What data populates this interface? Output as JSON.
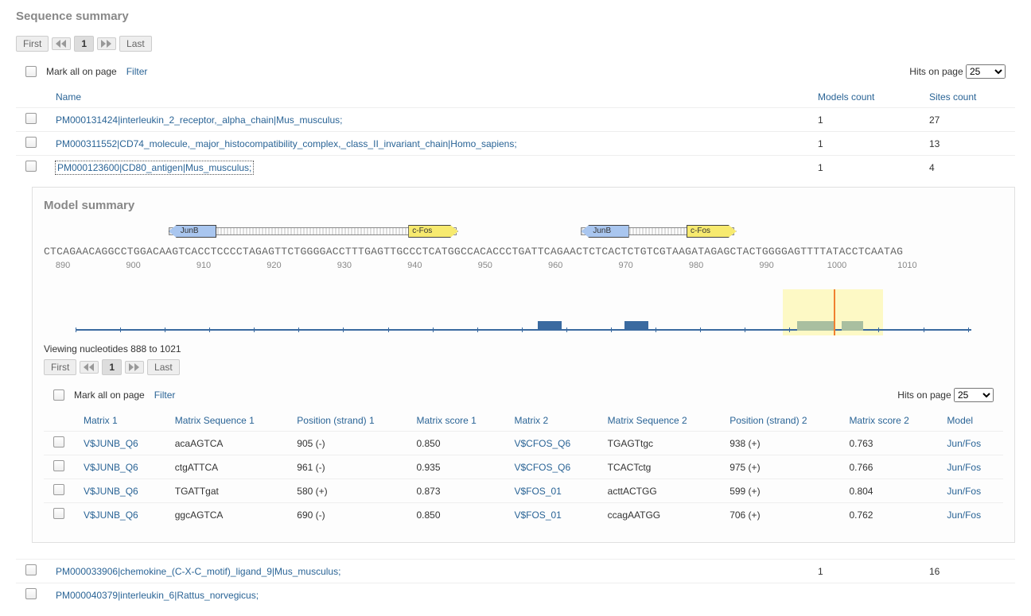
{
  "section_title": "Sequence summary",
  "pager": {
    "first": "First",
    "last": "Last",
    "page": "1"
  },
  "toolbar": {
    "mark_all": "Mark all on page",
    "filter": "Filter",
    "hits_label": "Hits on page",
    "hits_value": "25"
  },
  "seq_table": {
    "cols": {
      "name": "Name",
      "models": "Models count",
      "sites": "Sites count"
    },
    "rows": [
      {
        "name": "PM000131424|interleukin_2_receptor,_alpha_chain|Mus_musculus;",
        "models": "1",
        "sites": "27",
        "selected": false,
        "expanded": false
      },
      {
        "name": "PM000311552|CD74_molecule,_major_histocompatibility_complex,_class_II_invariant_chain|Homo_sapiens;",
        "models": "1",
        "sites": "13",
        "selected": false,
        "expanded": false
      },
      {
        "name": "PM000123600|CD80_antigen|Mus_musculus;",
        "models": "1",
        "sites": "4",
        "selected": false,
        "expanded": true
      },
      {
        "name": "PM000033906|chemokine_(C-X-C_motif)_ligand_9|Mus_musculus;",
        "models": "1",
        "sites": "16",
        "selected": false,
        "expanded": false
      },
      {
        "name": "PM000040379|interleukin_6|Rattus_norvegicus;",
        "models": "",
        "sites": "",
        "selected": false,
        "expanded": false
      }
    ]
  },
  "model_summary": {
    "title": "Model summary",
    "tf_labels": {
      "junb": "JunB",
      "cfos": "c-Fos"
    },
    "arrow_groups": [
      {
        "dotted_left_pct": 13,
        "dotted_width_pct": 30,
        "junb_left_pct": 13,
        "junb_width_pct": 5,
        "cfos_left_pct": 38,
        "cfos_width_pct": 5.2
      },
      {
        "dotted_left_pct": 56,
        "dotted_width_pct": 16,
        "junb_left_pct": 56,
        "junb_width_pct": 5,
        "cfos_left_pct": 67,
        "cfos_width_pct": 5.2
      }
    ],
    "sequence": "CTCAGAACAGGCCTGGACAAGTCACCTCCCCTAGAGTTCTGGGGACCTTTGAGTTGCCCTCATGGCCACACCCTGATTCAGAACTCTCACTCTGTCGTAAGATAGAGCTACTGGGGAGTTTTATACCTCAATAG",
    "ruler": {
      "start": 890,
      "end": 1010,
      "step": 10
    },
    "overview": {
      "blocks": [
        {
          "left_pct": 51.5,
          "width_pct": 2.5,
          "color": "#3a6aa0"
        },
        {
          "left_pct": 60.5,
          "width_pct": 2.5,
          "color": "#3a6aa0"
        }
      ],
      "highlight": {
        "left_pct": 77,
        "width_pct": 10.5
      },
      "highlight_inners": [
        {
          "left_pct": 78.5,
          "width_pct": 3.8
        },
        {
          "left_pct": 83.2,
          "width_pct": 2.2
        }
      ],
      "cursor_left_pct": 82.3
    },
    "viewing_label": "Viewing nucleotides 888 to 1021"
  },
  "matrix_table": {
    "cols": {
      "m1": "Matrix 1",
      "ms1": "Matrix Sequence 1",
      "p1": "Position (strand) 1",
      "sc1": "Matrix score 1",
      "m2": "Matrix 2",
      "ms2": "Matrix Sequence 2",
      "p2": "Position (strand) 2",
      "sc2": "Matrix score 2",
      "model": "Model"
    },
    "rows": [
      {
        "m1": "V$JUNB_Q6",
        "ms1": "acaAGTCA",
        "p1": "905 (-)",
        "sc1": "0.850",
        "m2": "V$CFOS_Q6",
        "ms2": "TGAGTtgc",
        "p2": "938 (+)",
        "sc2": "0.763",
        "model": "Jun/Fos"
      },
      {
        "m1": "V$JUNB_Q6",
        "ms1": "ctgATTCA",
        "p1": "961 (-)",
        "sc1": "0.935",
        "m2": "V$CFOS_Q6",
        "ms2": "TCACTctg",
        "p2": "975 (+)",
        "sc2": "0.766",
        "model": "Jun/Fos"
      },
      {
        "m1": "V$JUNB_Q6",
        "ms1": "TGATTgat",
        "p1": "580 (+)",
        "sc1": "0.873",
        "m2": "V$FOS_01",
        "ms2": "acttACTGG",
        "p2": "599 (+)",
        "sc2": "0.804",
        "model": "Jun/Fos"
      },
      {
        "m1": "V$JUNB_Q6",
        "ms1": "ggcAGTCA",
        "p1": "690 (-)",
        "sc1": "0.850",
        "m2": "V$FOS_01",
        "ms2": "ccagAATGG",
        "p2": "706 (+)",
        "sc2": "0.762",
        "model": "Jun/Fos"
      }
    ]
  },
  "colors": {
    "link": "#2a6496",
    "heading": "#888888",
    "junb_bg": "#a9c6ef",
    "cfos_bg": "#f7ea6f",
    "axis": "#3a6aa0",
    "highlight": "#fcf7b7",
    "cursor": "#f08030"
  }
}
